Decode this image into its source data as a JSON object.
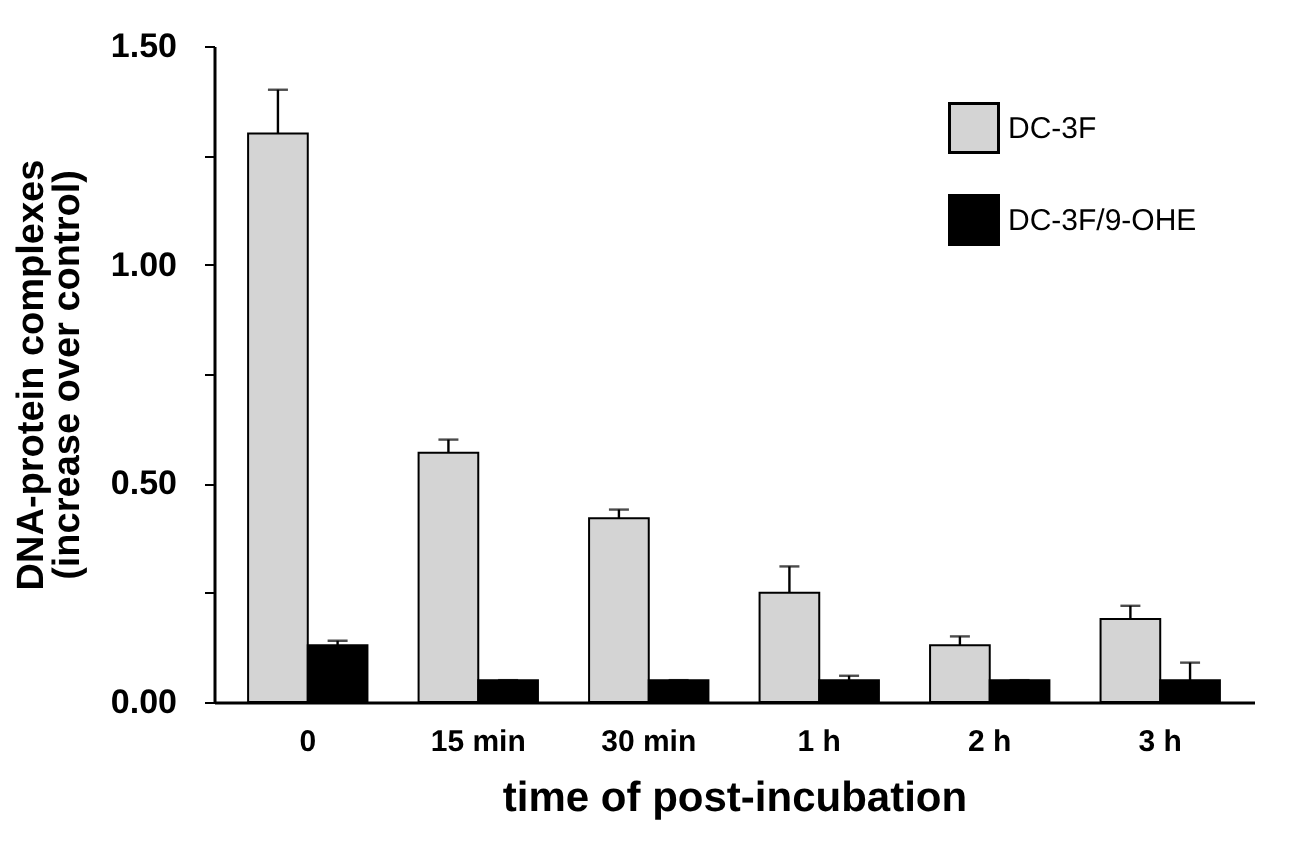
{
  "chart_data": {
    "type": "bar",
    "xlabel": "time of post-incubation",
    "ylabel": "DNA-protein complexes\n(increase over control)",
    "categories": [
      "0",
      "15 min",
      "30 min",
      "1 h",
      "2 h",
      "3 h"
    ],
    "series": [
      {
        "name": "DC-3F",
        "color": "#d4d4d4",
        "values": [
          1.3,
          0.57,
          0.42,
          0.25,
          0.13,
          0.19
        ],
        "errors": [
          [
            1.3,
            1.4
          ],
          [
            0.57,
            0.6
          ],
          [
            0.42,
            0.44
          ],
          [
            0.25,
            0.31
          ],
          [
            0.13,
            0.15
          ],
          [
            0.19,
            0.22
          ]
        ]
      },
      {
        "name": "DC-3F/9-OHE",
        "color": "#000000",
        "values": [
          0.13,
          0.05,
          0.05,
          0.05,
          0.05,
          0.05
        ],
        "errors": [
          [
            0.13,
            0.14
          ],
          [
            0.05,
            0.05
          ],
          [
            0.05,
            0.05
          ],
          [
            0.05,
            0.06
          ],
          [
            0.05,
            0.05
          ],
          [
            0.05,
            0.09
          ]
        ]
      }
    ],
    "ylim": [
      0,
      1.5
    ],
    "yticks": [
      {
        "value": 0,
        "label": "0.00"
      },
      {
        "value": 0.25,
        "label": null
      },
      {
        "value": 0.5,
        "label": "0.50"
      },
      {
        "value": 0.75,
        "label": null
      },
      {
        "value": 1,
        "label": "1.00"
      },
      {
        "value": 1.25,
        "label": null
      },
      {
        "value": 1.5,
        "label": "1.50"
      }
    ],
    "grid": false,
    "legend": "top right"
  }
}
